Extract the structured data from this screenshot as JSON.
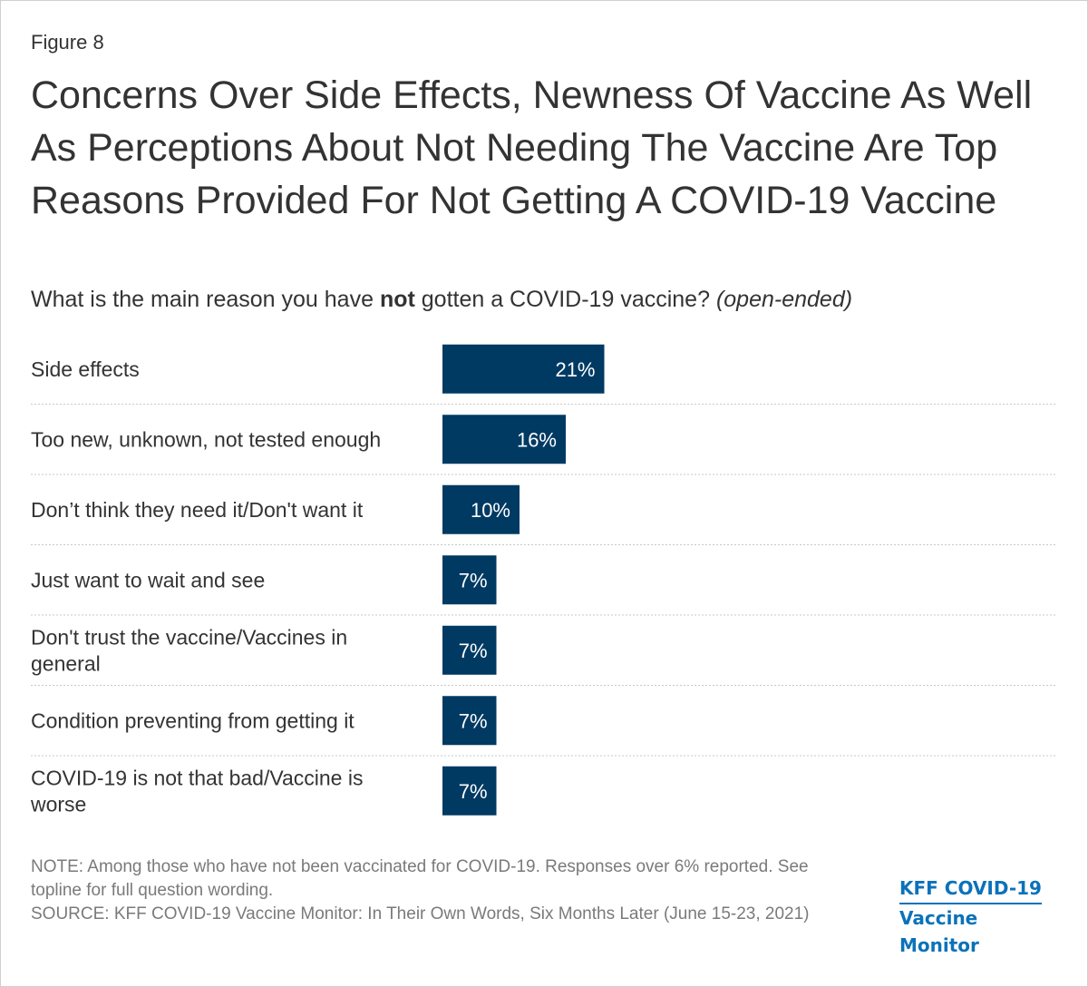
{
  "figure_label": "Figure 8",
  "title": "Concerns Over Side Effects, Newness Of Vaccine As Well As Perceptions About Not Needing The Vaccine Are Top Reasons Provided For Not Getting A COVID-19 Vaccine",
  "subtitle": {
    "part1": "What is the main reason you have ",
    "bold": "not",
    "part2": " gotten a COVID-19 vaccine? ",
    "italic": "(open-ended)"
  },
  "chart_data": {
    "type": "bar",
    "orientation": "horizontal",
    "categories": [
      [
        "Side effects"
      ],
      [
        "Too new, unknown, not tested enough"
      ],
      [
        "Don’t think they need it/Don't want it"
      ],
      [
        "Just want to wait and see"
      ],
      [
        "Don't trust the vaccine/Vaccines in",
        "general"
      ],
      [
        "Condition preventing from getting it"
      ],
      [
        "COVID-19 is not that bad/Vaccine is",
        "worse"
      ]
    ],
    "values": [
      21,
      16,
      10,
      7,
      7,
      7,
      7
    ],
    "value_labels": [
      "21%",
      "16%",
      "10%",
      "7%",
      "7%",
      "7%",
      "7%"
    ],
    "unit": "%",
    "xlim": [
      0,
      100
    ],
    "bar_color": "#003a63",
    "label_color": "#ffffff",
    "grid": false
  },
  "note": "NOTE: Among those who have not been vaccinated for COVID-19. Responses over 6% reported. See topline for full question wording.",
  "source": "SOURCE: KFF COVID-19 Vaccine Monitor: In Their Own Words, Six Months Later (June 15-23, 2021)",
  "logo": {
    "line1": "KFF COVID-19",
    "line2": "Vaccine Monitor",
    "color": "#0b72b9"
  }
}
